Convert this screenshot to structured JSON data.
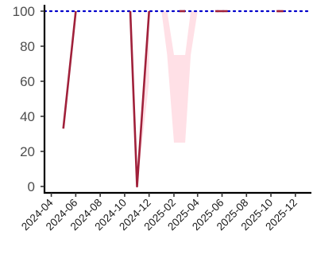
{
  "chart_data": {
    "type": "line",
    "title": "",
    "xlabel": "",
    "ylabel": "",
    "ylim": [
      0,
      100
    ],
    "y_ticks": [
      0,
      20,
      40,
      60,
      80,
      100
    ],
    "x_tick_labels": [
      "2024-04",
      "2024-06",
      "2024-08",
      "2024-10",
      "2024-12",
      "2025-02",
      "2025-04",
      "2025-06",
      "2025-08",
      "2025-10",
      "2025-12"
    ],
    "x_range": [
      "2024-03-15",
      "2026-01-10"
    ],
    "reference_line": {
      "y": 100,
      "style": "dotted",
      "color": "#0000cc"
    },
    "line_color": "#a0203a",
    "band_color": "#ffe0e6",
    "grid": false,
    "series": [
      {
        "segments": [
          [
            [
              "2024-05-01",
              33
            ],
            [
              "2024-06-01",
              100
            ]
          ],
          [
            [
              "2024-10-15",
              100
            ],
            [
              "2024-11-01",
              0
            ],
            [
              "2024-12-01",
              100
            ]
          ],
          [
            [
              "2025-02-15",
              100
            ],
            [
              "2025-03-01",
              100
            ]
          ],
          [
            [
              "2025-05-15",
              100
            ],
            [
              "2025-06-15",
              100
            ]
          ],
          [
            [
              "2025-10-15",
              100
            ],
            [
              "2025-11-01",
              100
            ]
          ]
        ]
      }
    ],
    "bands": [
      [
        [
          "2024-11-01",
          0,
          0
        ],
        [
          "2024-12-01",
          60,
          100
        ]
      ],
      [
        [
          "2025-01-01",
          100,
          100
        ],
        [
          "2025-01-15",
          75,
          100
        ],
        [
          "2025-02-01",
          25,
          75
        ],
        [
          "2025-03-01",
          25,
          75
        ],
        [
          "2025-03-15",
          75,
          100
        ],
        [
          "2025-04-01",
          100,
          100
        ]
      ]
    ]
  }
}
